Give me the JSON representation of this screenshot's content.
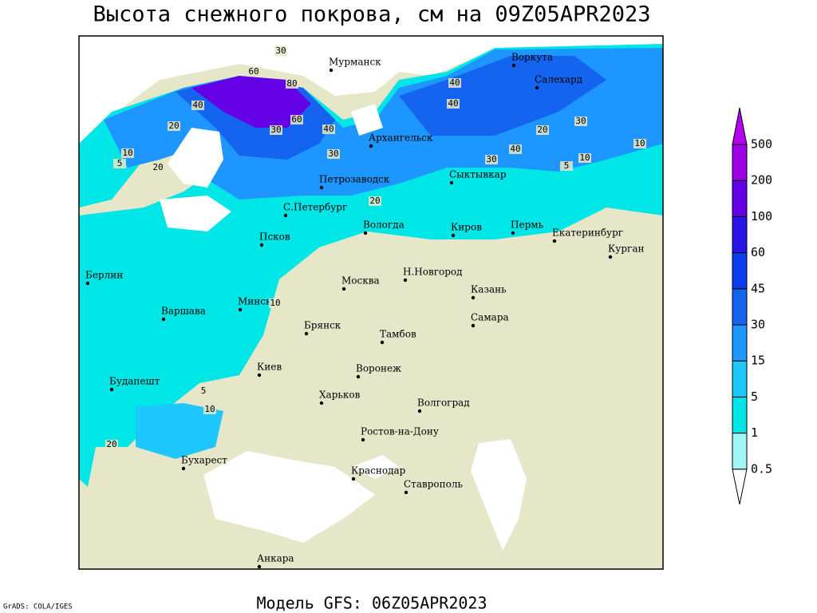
{
  "title": "Высота снежного покрова, см на 09Z05APR2023",
  "subtitle": "Модель GFS: 06Z05APR2023",
  "credit": "GrADS: COLA/IGES",
  "cities": [
    "Мурманск",
    "Воркута",
    "Салехард",
    "Архангельск",
    "Петрозаводск",
    "Сыктывкар",
    "С.Петербург",
    "Вологда",
    "Киров",
    "Пермь",
    "Екатеринбург",
    "Курган",
    "Псков",
    "Берлин",
    "Н.Новгород",
    "Москва",
    "Казань",
    "Минск",
    "Варшава",
    "Самара",
    "Брянск",
    "Тамбов",
    "Киев",
    "Воронеж",
    "Будапешт",
    "Харьков",
    "Волгоград",
    "Ростов-на-Дону",
    "Бухарест",
    "Краснодар",
    "Ставрополь",
    "Анкара"
  ],
  "contour_labels": [
    30,
    60,
    80,
    40,
    20,
    30,
    40,
    60,
    40,
    30,
    20,
    30,
    40,
    20,
    10,
    5,
    10,
    5,
    10,
    5,
    20,
    10,
    30,
    20,
    40,
    10
  ],
  "colorbar": {
    "levels": [
      0.5,
      1,
      5,
      15,
      30,
      45,
      60,
      100,
      200,
      500
    ],
    "colors": [
      "#ffffff",
      "#a0f5f5",
      "#00e6e6",
      "#1ec8ff",
      "#1e96ff",
      "#1464f0",
      "#0a3cf0",
      "#2814e6",
      "#6400e6",
      "#a000e6",
      "#b400f0"
    ]
  }
}
